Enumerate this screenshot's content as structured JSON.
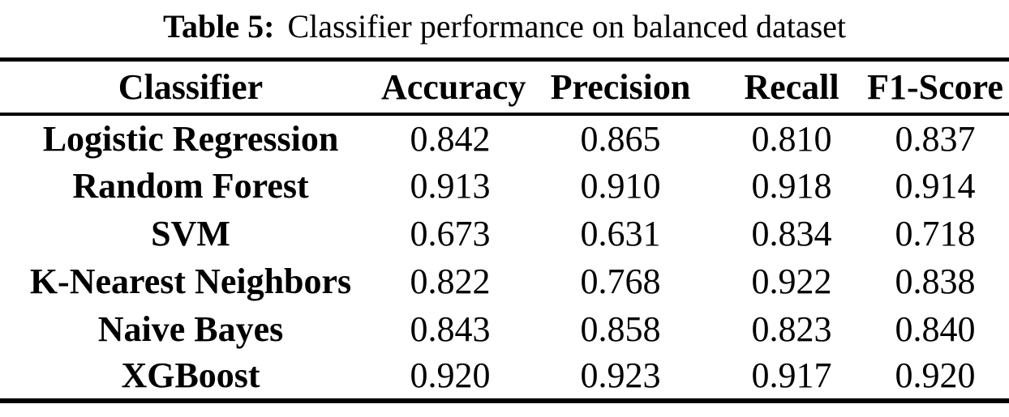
{
  "caption": {
    "label": "Table 5:",
    "text": "Classifier performance on balanced dataset"
  },
  "table": {
    "headers": [
      "Classifier",
      "Accuracy",
      "Precision",
      "Recall",
      "F1-Score"
    ],
    "rows": [
      {
        "name": "Logistic Regression",
        "values": [
          "0.842",
          "0.865",
          "0.810",
          "0.837"
        ]
      },
      {
        "name": "Random Forest",
        "values": [
          "0.913",
          "0.910",
          "0.918",
          "0.914"
        ]
      },
      {
        "name": "SVM",
        "values": [
          "0.673",
          "0.631",
          "0.834",
          "0.718"
        ]
      },
      {
        "name": "K-Nearest Neighbors",
        "values": [
          "0.822",
          "0.768",
          "0.922",
          "0.838"
        ]
      },
      {
        "name": "Naive Bayes",
        "values": [
          "0.843",
          "0.858",
          "0.823",
          "0.840"
        ]
      },
      {
        "name": "XGBoost",
        "values": [
          "0.920",
          "0.923",
          "0.917",
          "0.920"
        ]
      }
    ]
  },
  "colors": {
    "text": "#000000",
    "background": "#ffffff",
    "rule": "#000000"
  }
}
